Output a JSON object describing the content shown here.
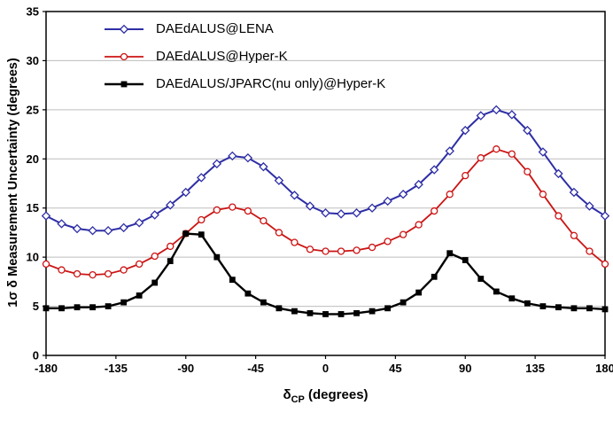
{
  "chart_data": {
    "type": "line",
    "title": "",
    "xlabel_prefix": "δ",
    "xlabel_sub": "CP",
    "xlabel_suffix": " (degrees)",
    "ylabel": "1σ δ Measurement Uncertainty (degrees)",
    "xlim": [
      -180,
      180
    ],
    "ylim": [
      0,
      35
    ],
    "xticks": [
      -180,
      -135,
      -90,
      -45,
      0,
      45,
      90,
      135,
      180
    ],
    "xtick_labels": [
      "-180",
      "-135",
      "-90",
      "-45",
      "0",
      "45",
      "90",
      "135",
      "180"
    ],
    "yticks": [
      0,
      5,
      10,
      15,
      20,
      25,
      30,
      35
    ],
    "ytick_labels": [
      "0",
      "5",
      "10",
      "15",
      "20",
      "25",
      "30",
      "35"
    ],
    "grid": "horizontal",
    "grid_color": "#bdbdbd",
    "axis_color": "#000000",
    "background_color": "#ffffff",
    "legend_position": "top-left",
    "x": [
      -180,
      -170,
      -160,
      -150,
      -140,
      -130,
      -120,
      -110,
      -100,
      -90,
      -80,
      -70,
      -60,
      -50,
      -40,
      -30,
      -20,
      -10,
      0,
      10,
      20,
      30,
      40,
      50,
      60,
      70,
      80,
      90,
      100,
      110,
      120,
      130,
      140,
      150,
      160,
      170,
      180
    ],
    "series": [
      {
        "name": "DAEdALUS@LENA",
        "color": "#2e2ea6",
        "marker": "diamond",
        "values": [
          14.2,
          13.4,
          12.9,
          12.7,
          12.7,
          13.0,
          13.5,
          14.3,
          15.3,
          16.6,
          18.1,
          19.5,
          20.3,
          20.1,
          19.2,
          17.8,
          16.3,
          15.2,
          14.5,
          14.4,
          14.5,
          15.0,
          15.7,
          16.4,
          17.4,
          18.9,
          20.8,
          22.9,
          24.4,
          25.0,
          24.5,
          22.9,
          20.7,
          18.5,
          16.6,
          15.2,
          14.2
        ]
      },
      {
        "name": "DAEdALUS@Hyper-K",
        "color": "#cc1414",
        "marker": "circle",
        "values": [
          9.3,
          8.7,
          8.3,
          8.2,
          8.3,
          8.7,
          9.3,
          10.1,
          11.1,
          12.4,
          13.8,
          14.8,
          15.1,
          14.7,
          13.7,
          12.5,
          11.5,
          10.8,
          10.6,
          10.6,
          10.7,
          11.0,
          11.6,
          12.3,
          13.3,
          14.7,
          16.4,
          18.3,
          20.1,
          21.0,
          20.5,
          18.7,
          16.4,
          14.2,
          12.2,
          10.6,
          9.3
        ]
      },
      {
        "name": "DAEdALUS/JPARC(nu only)@Hyper-K",
        "color": "#000000",
        "marker": "square",
        "values": [
          4.8,
          4.8,
          4.9,
          4.9,
          5.0,
          5.4,
          6.1,
          7.4,
          9.6,
          12.4,
          12.3,
          10.0,
          7.7,
          6.3,
          5.4,
          4.8,
          4.5,
          4.3,
          4.2,
          4.2,
          4.3,
          4.5,
          4.8,
          5.4,
          6.4,
          8.0,
          10.4,
          9.7,
          7.8,
          6.5,
          5.8,
          5.3,
          5.0,
          4.9,
          4.8,
          4.8,
          4.7
        ]
      }
    ]
  }
}
